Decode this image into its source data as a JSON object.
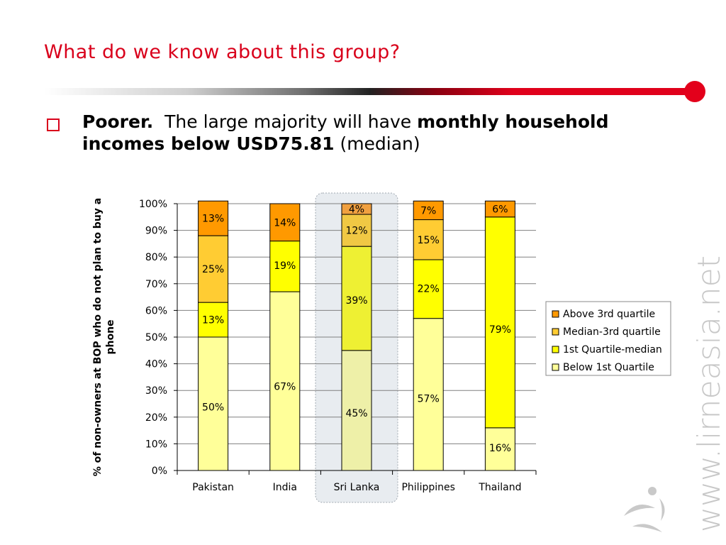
{
  "slide": {
    "title": "What do we know about this group?",
    "bullet": {
      "lead": "Poorer.",
      "text1": "The large majority will have",
      "bold": "monthly household incomes below USD75.81",
      "tail": "(median)"
    },
    "watermark": "www.lirneasia.net"
  },
  "colors": {
    "accent": "#d9001b",
    "above_3rd": "#ff9900",
    "median_3rd": "#ffcc33",
    "q1_median": "#ffff00",
    "below_q1": "#ffff99",
    "highlight_bg": "#e8ecf0"
  },
  "chart_data": {
    "type": "bar",
    "stacked": true,
    "ylabel": "% of non-owners at BOP who do not plan to buy a phone",
    "yticks": [
      "0%",
      "10%",
      "20%",
      "30%",
      "40%",
      "50%",
      "60%",
      "70%",
      "80%",
      "90%",
      "100%"
    ],
    "ylim": [
      0,
      100
    ],
    "categories": [
      "Pakistan",
      "India",
      "Sri Lanka",
      "Philippines",
      "Thailand"
    ],
    "highlighted_category": "Sri Lanka",
    "series": [
      {
        "name": "Below 1st Quartile",
        "values": [
          50,
          67,
          45,
          57,
          16
        ],
        "labels": [
          "50%",
          "67%",
          "45%",
          "57%",
          "16%"
        ]
      },
      {
        "name": "1st Quartile-median",
        "values": [
          13,
          19,
          39,
          22,
          79
        ],
        "labels": [
          "13%",
          "19%",
          "39%",
          "22%",
          "79%"
        ]
      },
      {
        "name": "Median-3rd quartile",
        "values": [
          25,
          0,
          12,
          15,
          0
        ],
        "labels": [
          "25%",
          "",
          "12%",
          "15%",
          ""
        ]
      },
      {
        "name": "Above 3rd quartile",
        "values": [
          13,
          14,
          4,
          7,
          6
        ],
        "labels": [
          "13%",
          "14%",
          "4%",
          "7%",
          "6%"
        ]
      }
    ],
    "legend": {
      "placement": "right",
      "order": [
        "Above 3rd quartile",
        "Median-3rd quartile",
        "1st Quartile-median",
        "Below 1st Quartile"
      ]
    },
    "grid": true
  }
}
